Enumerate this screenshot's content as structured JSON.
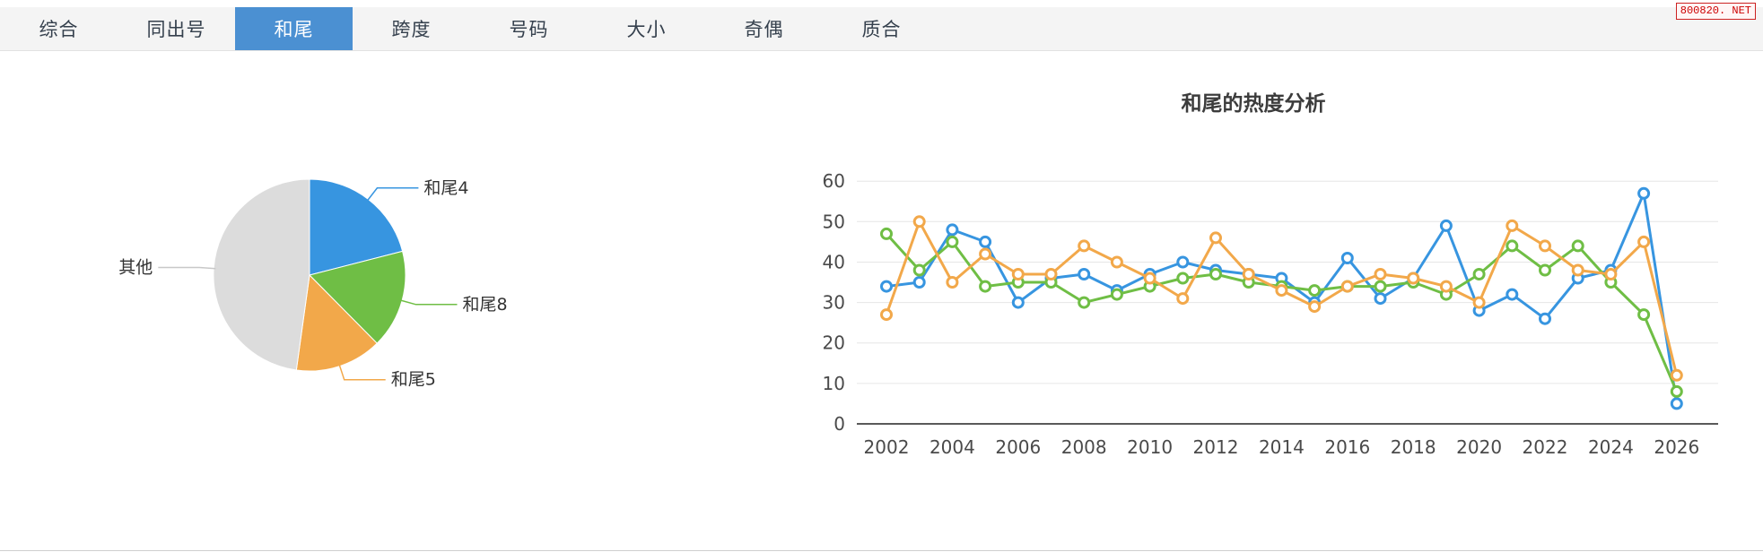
{
  "tabs": {
    "items": [
      {
        "label": "综合",
        "active": false
      },
      {
        "label": "同出号",
        "active": false
      },
      {
        "label": "和尾",
        "active": true
      },
      {
        "label": "跨度",
        "active": false
      },
      {
        "label": "号码",
        "active": false
      },
      {
        "label": "大小",
        "active": false
      },
      {
        "label": "奇偶",
        "active": false
      },
      {
        "label": "质合",
        "active": false
      }
    ]
  },
  "watermark": {
    "text": "800820. NET"
  },
  "colors": {
    "blue": "#3795e0",
    "green": "#6fbe45",
    "orange": "#f2a84a",
    "gray": "#dcdcdc",
    "tab_active": "#4b90d2"
  },
  "chart_data": [
    {
      "type": "pie",
      "title": "",
      "slices": [
        {
          "label": "和尾4",
          "value": 21.0,
          "color": "#3795e0"
        },
        {
          "label": "和尾8",
          "value": 16.6,
          "color": "#6fbe45"
        },
        {
          "label": "和尾5",
          "value": 14.6,
          "color": "#f2a84a"
        },
        {
          "label": "其他",
          "value": 47.8,
          "color": "#dcdcdc"
        }
      ],
      "start_angle_deg": 0,
      "clockwise": true,
      "legend": "none"
    },
    {
      "type": "line",
      "title": "和尾的热度分析",
      "x": [
        2002,
        2003,
        2004,
        2005,
        2006,
        2007,
        2008,
        2009,
        2010,
        2011,
        2012,
        2013,
        2014,
        2015,
        2016,
        2017,
        2018,
        2019,
        2020,
        2021,
        2022,
        2023,
        2024,
        2025,
        2026
      ],
      "xtick_labels": [
        "2002",
        "2004",
        "2006",
        "2008",
        "2010",
        "2012",
        "2014",
        "2016",
        "2018",
        "2020",
        "2022",
        "2024",
        "2026"
      ],
      "series": [
        {
          "name": "和尾4",
          "color": "#3795e0",
          "values": [
            34,
            35,
            48,
            45,
            30,
            36,
            37,
            33,
            37,
            40,
            38,
            37,
            36,
            30,
            41,
            31,
            36,
            49,
            28,
            32,
            26,
            36,
            38,
            57,
            5
          ]
        },
        {
          "name": "和尾8",
          "color": "#6fbe45",
          "values": [
            47,
            38,
            45,
            34,
            35,
            35,
            30,
            32,
            34,
            36,
            37,
            35,
            34,
            33,
            34,
            34,
            35,
            32,
            37,
            44,
            38,
            44,
            35,
            27,
            8
          ]
        },
        {
          "name": "和尾5",
          "color": "#f2a84a",
          "values": [
            27,
            50,
            35,
            42,
            37,
            37,
            44,
            40,
            36,
            31,
            46,
            37,
            33,
            29,
            34,
            37,
            36,
            34,
            30,
            49,
            44,
            38,
            37,
            45,
            12
          ]
        }
      ],
      "ylim": [
        0,
        60
      ],
      "ytick_step": 10,
      "grid": "horizontal",
      "legend": "none"
    }
  ]
}
